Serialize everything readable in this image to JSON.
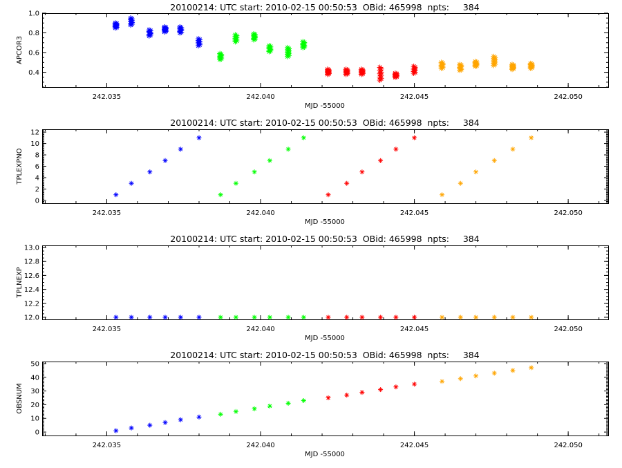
{
  "chart_data": [
    {
      "type": "scatter",
      "title": "20100214: UTC start: 2010-02-15 00:50:53  OBid: 465998  npts:     384",
      "xlabel": "MJD -55000",
      "ylabel": "APCOR3",
      "xlim": [
        242.0329,
        242.0513
      ],
      "ylim": [
        0.25,
        1.0
      ],
      "x_ticks": [
        "242.035",
        "242.040",
        "242.045",
        "242.050"
      ],
      "x_tick_values": [
        242.035,
        242.04,
        242.045,
        242.05
      ],
      "y_ticks": [
        "0.4",
        "0.6",
        "0.8",
        "1.0"
      ],
      "y_tick_values": [
        0.4,
        0.6,
        0.8,
        1.0
      ],
      "grid": false,
      "marker": "asterisk",
      "series": [
        {
          "color": "#0000ff",
          "x": [
            242.0353,
            242.0358,
            242.0364,
            242.0369,
            242.0374,
            242.038
          ],
          "ymin": [
            0.85,
            0.88,
            0.77,
            0.81,
            0.8,
            0.67
          ],
          "ymax": [
            0.9,
            0.95,
            0.83,
            0.86,
            0.86,
            0.74
          ]
        },
        {
          "color": "#00ff00",
          "x": [
            242.0387,
            242.0392,
            242.0398,
            242.0403,
            242.0409,
            242.0414
          ],
          "ymin": [
            0.53,
            0.71,
            0.73,
            0.61,
            0.56,
            0.65
          ],
          "ymax": [
            0.59,
            0.78,
            0.79,
            0.67,
            0.65,
            0.71
          ]
        },
        {
          "color": "#ff0000",
          "x": [
            242.0422,
            242.0428,
            242.0433,
            242.0439,
            242.0444,
            242.045
          ],
          "ymin": [
            0.38,
            0.38,
            0.38,
            0.32,
            0.35,
            0.39
          ],
          "ymax": [
            0.43,
            0.43,
            0.43,
            0.45,
            0.39,
            0.46
          ]
        },
        {
          "color": "#ffa500",
          "x": [
            242.0459,
            242.0465,
            242.047,
            242.0476,
            242.0482,
            242.0488
          ],
          "ymin": [
            0.44,
            0.42,
            0.46,
            0.47,
            0.43,
            0.44
          ],
          "ymax": [
            0.5,
            0.48,
            0.51,
            0.56,
            0.48,
            0.49
          ]
        }
      ]
    },
    {
      "type": "scatter",
      "title": "20100214: UTC start: 2010-02-15 00:50:53  OBid: 465998  npts:     384",
      "xlabel": "MJD -55000",
      "ylabel": "TPLEXPNO",
      "xlim": [
        242.0329,
        242.0513
      ],
      "ylim": [
        -0.5,
        12.5
      ],
      "x_ticks": [
        "242.035",
        "242.040",
        "242.045",
        "242.050"
      ],
      "x_tick_values": [
        242.035,
        242.04,
        242.045,
        242.05
      ],
      "y_ticks": [
        "0",
        "2",
        "4",
        "6",
        "8",
        "10",
        "12"
      ],
      "y_tick_values": [
        0,
        2,
        4,
        6,
        8,
        10,
        12
      ],
      "grid": false,
      "marker": "asterisk",
      "series": [
        {
          "color": "#0000ff",
          "x": [
            242.0353,
            242.0358,
            242.0364,
            242.0369,
            242.0374,
            242.038
          ],
          "y": [
            1,
            3,
            5,
            7,
            9,
            11
          ]
        },
        {
          "color": "#00ff00",
          "x": [
            242.0387,
            242.0392,
            242.0398,
            242.0403,
            242.0409,
            242.0414
          ],
          "y": [
            1,
            3,
            5,
            7,
            9,
            11
          ]
        },
        {
          "color": "#ff0000",
          "x": [
            242.0422,
            242.0428,
            242.0433,
            242.0439,
            242.0444,
            242.045
          ],
          "y": [
            1,
            3,
            5,
            7,
            9,
            11
          ]
        },
        {
          "color": "#ffa500",
          "x": [
            242.0459,
            242.0465,
            242.047,
            242.0476,
            242.0482,
            242.0488
          ],
          "y": [
            1,
            3,
            5,
            7,
            9,
            11
          ]
        }
      ]
    },
    {
      "type": "scatter",
      "title": "20100214: UTC start: 2010-02-15 00:50:53  OBid: 465998  npts:     384",
      "xlabel": "MJD -55000",
      "ylabel": "TPLNEXP",
      "xlim": [
        242.0329,
        242.0513
      ],
      "ylim": [
        11.97,
        13.03
      ],
      "x_ticks": [
        "242.035",
        "242.040",
        "242.045",
        "242.050"
      ],
      "x_tick_values": [
        242.035,
        242.04,
        242.045,
        242.05
      ],
      "y_ticks": [
        "12.0",
        "12.2",
        "12.4",
        "12.6",
        "12.8",
        "13.0"
      ],
      "y_tick_values": [
        12.0,
        12.2,
        12.4,
        12.6,
        12.8,
        13.0
      ],
      "grid": false,
      "marker": "asterisk",
      "series": [
        {
          "color": "#0000ff",
          "x": [
            242.0353,
            242.0358,
            242.0364,
            242.0369,
            242.0374,
            242.038
          ],
          "y": [
            12,
            12,
            12,
            12,
            12,
            12
          ]
        },
        {
          "color": "#00ff00",
          "x": [
            242.0387,
            242.0392,
            242.0398,
            242.0403,
            242.0409,
            242.0414
          ],
          "y": [
            12,
            12,
            12,
            12,
            12,
            12
          ]
        },
        {
          "color": "#ff0000",
          "x": [
            242.0422,
            242.0428,
            242.0433,
            242.0439,
            242.0444,
            242.045
          ],
          "y": [
            12,
            12,
            12,
            12,
            12,
            12
          ]
        },
        {
          "color": "#ffa500",
          "x": [
            242.0459,
            242.0465,
            242.047,
            242.0476,
            242.0482,
            242.0488
          ],
          "y": [
            12,
            12,
            12,
            12,
            12,
            12
          ]
        }
      ]
    },
    {
      "type": "scatter",
      "title": "20100214: UTC start: 2010-02-15 00:50:53  OBid: 465998  npts:     384",
      "xlabel": "MJD -55000",
      "ylabel": "OBSNUM",
      "xlim": [
        242.0329,
        242.0513
      ],
      "ylim": [
        -2.5,
        51.5
      ],
      "x_ticks": [
        "242.035",
        "242.040",
        "242.045",
        "242.050"
      ],
      "x_tick_values": [
        242.035,
        242.04,
        242.045,
        242.05
      ],
      "y_ticks": [
        "0",
        "10",
        "20",
        "30",
        "40",
        "50"
      ],
      "y_tick_values": [
        0,
        10,
        20,
        30,
        40,
        50
      ],
      "grid": false,
      "marker": "asterisk",
      "series": [
        {
          "color": "#0000ff",
          "x": [
            242.0353,
            242.0358,
            242.0364,
            242.0369,
            242.0374,
            242.038
          ],
          "y": [
            1,
            3,
            5,
            7,
            9,
            11
          ]
        },
        {
          "color": "#00ff00",
          "x": [
            242.0387,
            242.0392,
            242.0398,
            242.0403,
            242.0409,
            242.0414
          ],
          "y": [
            13,
            15,
            17,
            19,
            21,
            23
          ]
        },
        {
          "color": "#ff0000",
          "x": [
            242.0422,
            242.0428,
            242.0433,
            242.0439,
            242.0444,
            242.045
          ],
          "y": [
            25,
            27,
            29,
            31,
            33,
            35
          ]
        },
        {
          "color": "#ffa500",
          "x": [
            242.0459,
            242.0465,
            242.047,
            242.0476,
            242.0482,
            242.0488
          ],
          "y": [
            37,
            39,
            41,
            43,
            45,
            47
          ]
        }
      ]
    }
  ]
}
